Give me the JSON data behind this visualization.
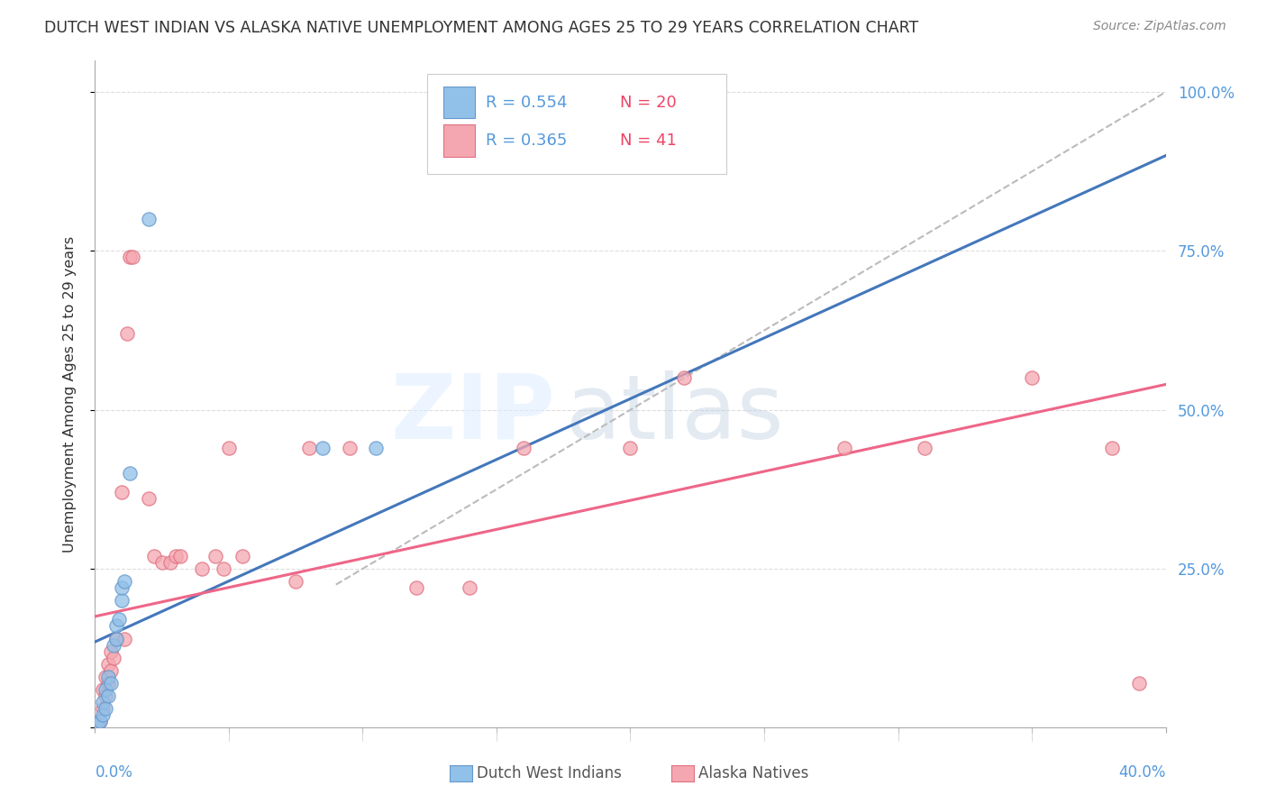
{
  "title": "DUTCH WEST INDIAN VS ALASKA NATIVE UNEMPLOYMENT AMONG AGES 25 TO 29 YEARS CORRELATION CHART",
  "source": "Source: ZipAtlas.com",
  "ylabel": "Unemployment Among Ages 25 to 29 years",
  "y_ticks": [
    0.0,
    0.25,
    0.5,
    0.75,
    1.0
  ],
  "y_tick_labels": [
    "",
    "25.0%",
    "50.0%",
    "75.0%",
    "100.0%"
  ],
  "xlim": [
    0.0,
    0.4
  ],
  "ylim": [
    0.0,
    1.05
  ],
  "legend_r1": "R = 0.554",
  "legend_n1": "N = 20",
  "legend_r2": "R = 0.365",
  "legend_n2": "N = 41",
  "blue_color": "#91C0E8",
  "pink_color": "#F4A7B0",
  "blue_edge_color": "#6699CC",
  "pink_edge_color": "#E07080",
  "blue_line_color": "#4477BB",
  "pink_line_color": "#EE6688",
  "ref_line_color": "#BBBBBB",
  "watermark_zip": "ZIP",
  "watermark_atlas": "atlas",
  "dutch_west_indians": [
    [
      0.001,
      0.005
    ],
    [
      0.002,
      0.01
    ],
    [
      0.003,
      0.02
    ],
    [
      0.003,
      0.04
    ],
    [
      0.004,
      0.03
    ],
    [
      0.004,
      0.06
    ],
    [
      0.005,
      0.05
    ],
    [
      0.005,
      0.08
    ],
    [
      0.006,
      0.07
    ],
    [
      0.007,
      0.13
    ],
    [
      0.008,
      0.14
    ],
    [
      0.008,
      0.16
    ],
    [
      0.009,
      0.17
    ],
    [
      0.01,
      0.2
    ],
    [
      0.01,
      0.22
    ],
    [
      0.011,
      0.23
    ],
    [
      0.013,
      0.4
    ],
    [
      0.02,
      0.8
    ],
    [
      0.085,
      0.44
    ],
    [
      0.105,
      0.44
    ]
  ],
  "alaska_natives": [
    [
      0.001,
      0.005
    ],
    [
      0.002,
      0.01
    ],
    [
      0.003,
      0.03
    ],
    [
      0.003,
      0.06
    ],
    [
      0.004,
      0.05
    ],
    [
      0.004,
      0.08
    ],
    [
      0.005,
      0.07
    ],
    [
      0.005,
      0.1
    ],
    [
      0.006,
      0.09
    ],
    [
      0.006,
      0.12
    ],
    [
      0.007,
      0.11
    ],
    [
      0.008,
      0.14
    ],
    [
      0.01,
      0.37
    ],
    [
      0.011,
      0.14
    ],
    [
      0.012,
      0.62
    ],
    [
      0.013,
      0.74
    ],
    [
      0.014,
      0.74
    ],
    [
      0.02,
      0.36
    ],
    [
      0.022,
      0.27
    ],
    [
      0.025,
      0.26
    ],
    [
      0.028,
      0.26
    ],
    [
      0.03,
      0.27
    ],
    [
      0.032,
      0.27
    ],
    [
      0.04,
      0.25
    ],
    [
      0.045,
      0.27
    ],
    [
      0.048,
      0.25
    ],
    [
      0.05,
      0.44
    ],
    [
      0.055,
      0.27
    ],
    [
      0.075,
      0.23
    ],
    [
      0.08,
      0.44
    ],
    [
      0.095,
      0.44
    ],
    [
      0.12,
      0.22
    ],
    [
      0.14,
      0.22
    ],
    [
      0.16,
      0.44
    ],
    [
      0.2,
      0.44
    ],
    [
      0.22,
      0.55
    ],
    [
      0.28,
      0.44
    ],
    [
      0.31,
      0.44
    ],
    [
      0.35,
      0.55
    ],
    [
      0.38,
      0.44
    ],
    [
      0.39,
      0.07
    ]
  ],
  "blue_trend_x": [
    0.0,
    0.4
  ],
  "blue_trend_y": [
    0.135,
    0.9
  ],
  "pink_trend_x": [
    0.0,
    0.4
  ],
  "pink_trend_y": [
    0.175,
    0.54
  ],
  "ref_line_x": [
    0.09,
    0.4
  ],
  "ref_line_y": [
    0.225,
    1.0
  ]
}
